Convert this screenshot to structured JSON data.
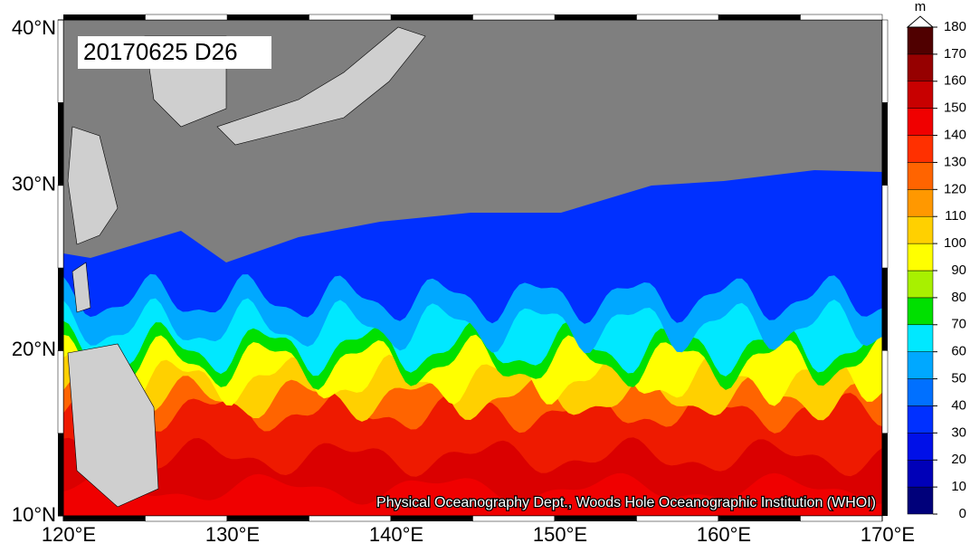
{
  "map": {
    "title": "20170625 D26",
    "credit": "Physical Oceanography Dept., Woods Hole Oceanographic Institution (WHOI)",
    "lat_ticks": [
      {
        "value": 10,
        "label": "10°N"
      },
      {
        "value": 20,
        "label": "20°N"
      },
      {
        "value": 30,
        "label": "30°N"
      },
      {
        "value": 40,
        "label": "40°N"
      }
    ],
    "lon_ticks": [
      {
        "value": 120,
        "label": "120°E"
      },
      {
        "value": 130,
        "label": "130°E"
      },
      {
        "value": 140,
        "label": "140°E"
      },
      {
        "value": 150,
        "label": "150°E"
      },
      {
        "value": 160,
        "label": "160°E"
      },
      {
        "value": 170,
        "label": "170°E"
      }
    ],
    "colorbar": {
      "unit": "m",
      "ticks": [
        0,
        10,
        20,
        30,
        40,
        50,
        60,
        70,
        80,
        90,
        100,
        110,
        120,
        130,
        140,
        150,
        160,
        170,
        180
      ],
      "colors": [
        "#00007a",
        "#0000b8",
        "#0010e8",
        "#0030ff",
        "#0070ff",
        "#00a8ff",
        "#00e8ff",
        "#00e000",
        "#a8f000",
        "#ffff00",
        "#ffd000",
        "#ff9800",
        "#ff6400",
        "#ff3000",
        "#f00000",
        "#c80000",
        "#960000",
        "#500000"
      ]
    }
  }
}
